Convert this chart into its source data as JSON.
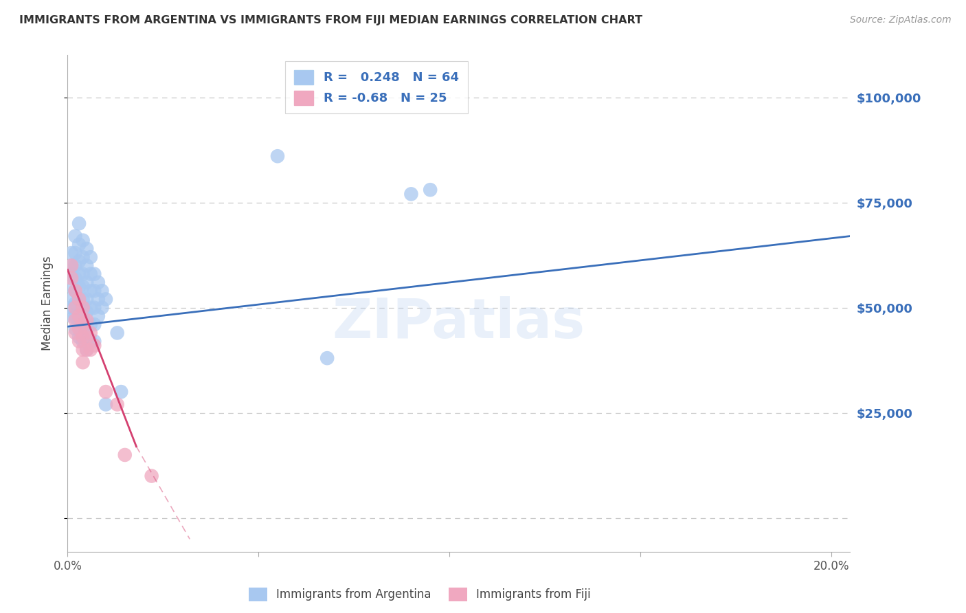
{
  "title": "IMMIGRANTS FROM ARGENTINA VS IMMIGRANTS FROM FIJI MEDIAN EARNINGS CORRELATION CHART",
  "source": "Source: ZipAtlas.com",
  "ylabel_label": "Median Earnings",
  "xlim": [
    0.0,
    0.205
  ],
  "ylim": [
    -8000,
    110000
  ],
  "argentina_R": 0.248,
  "argentina_N": 64,
  "fiji_R": -0.68,
  "fiji_N": 25,
  "argentina_color": "#a8c8f0",
  "fiji_color": "#f0a8c0",
  "argentina_line_color": "#3a6fba",
  "fiji_line_color": "#d44070",
  "watermark": "ZIPatlas",
  "background_color": "#ffffff",
  "grid_color": "#c8c8c8",
  "tick_label_color": "#3a6fba",
  "title_color": "#333333",
  "source_color": "#999999",
  "argentina_points": [
    [
      0.001,
      63000
    ],
    [
      0.001,
      60000
    ],
    [
      0.001,
      58000
    ],
    [
      0.001,
      55000
    ],
    [
      0.001,
      52000
    ],
    [
      0.001,
      50000
    ],
    [
      0.001,
      48000
    ],
    [
      0.002,
      67000
    ],
    [
      0.002,
      63000
    ],
    [
      0.002,
      60000
    ],
    [
      0.002,
      57000
    ],
    [
      0.002,
      54000
    ],
    [
      0.002,
      51000
    ],
    [
      0.002,
      48000
    ],
    [
      0.002,
      45000
    ],
    [
      0.003,
      70000
    ],
    [
      0.003,
      65000
    ],
    [
      0.003,
      61000
    ],
    [
      0.003,
      58000
    ],
    [
      0.003,
      55000
    ],
    [
      0.003,
      52000
    ],
    [
      0.003,
      49000
    ],
    [
      0.003,
      46000
    ],
    [
      0.003,
      43000
    ],
    [
      0.004,
      66000
    ],
    [
      0.004,
      62000
    ],
    [
      0.004,
      58000
    ],
    [
      0.004,
      55000
    ],
    [
      0.004,
      52000
    ],
    [
      0.004,
      48000
    ],
    [
      0.004,
      45000
    ],
    [
      0.004,
      42000
    ],
    [
      0.005,
      64000
    ],
    [
      0.005,
      60000
    ],
    [
      0.005,
      56000
    ],
    [
      0.005,
      52000
    ],
    [
      0.005,
      49000
    ],
    [
      0.005,
      46000
    ],
    [
      0.005,
      43000
    ],
    [
      0.005,
      40000
    ],
    [
      0.006,
      62000
    ],
    [
      0.006,
      58000
    ],
    [
      0.006,
      54000
    ],
    [
      0.006,
      50000
    ],
    [
      0.006,
      46000
    ],
    [
      0.006,
      42000
    ],
    [
      0.007,
      58000
    ],
    [
      0.007,
      54000
    ],
    [
      0.007,
      50000
    ],
    [
      0.007,
      46000
    ],
    [
      0.007,
      42000
    ],
    [
      0.008,
      56000
    ],
    [
      0.008,
      52000
    ],
    [
      0.008,
      48000
    ],
    [
      0.009,
      54000
    ],
    [
      0.009,
      50000
    ],
    [
      0.01,
      52000
    ],
    [
      0.01,
      27000
    ],
    [
      0.013,
      44000
    ],
    [
      0.014,
      30000
    ],
    [
      0.055,
      86000
    ],
    [
      0.068,
      38000
    ],
    [
      0.09,
      77000
    ],
    [
      0.095,
      78000
    ]
  ],
  "fiji_points": [
    [
      0.001,
      60000
    ],
    [
      0.001,
      57000
    ],
    [
      0.002,
      54000
    ],
    [
      0.002,
      50000
    ],
    [
      0.002,
      47000
    ],
    [
      0.002,
      44000
    ],
    [
      0.003,
      52000
    ],
    [
      0.003,
      48000
    ],
    [
      0.003,
      45000
    ],
    [
      0.003,
      42000
    ],
    [
      0.004,
      50000
    ],
    [
      0.004,
      46000
    ],
    [
      0.004,
      43000
    ],
    [
      0.004,
      40000
    ],
    [
      0.004,
      37000
    ],
    [
      0.005,
      47000
    ],
    [
      0.005,
      43000
    ],
    [
      0.005,
      40000
    ],
    [
      0.006,
      44000
    ],
    [
      0.006,
      40000
    ],
    [
      0.007,
      41000
    ],
    [
      0.01,
      30000
    ],
    [
      0.013,
      27000
    ],
    [
      0.015,
      15000
    ],
    [
      0.022,
      10000
    ]
  ],
  "argentina_line": {
    "x0": 0.0,
    "y0": 45500,
    "x1": 0.205,
    "y1": 67000
  },
  "fiji_line_solid": {
    "x0": 0.0,
    "y0": 59000,
    "x1": 0.018,
    "y1": 17000
  },
  "fiji_line_dash": {
    "x0": 0.018,
    "y0": 17000,
    "x1": 0.032,
    "y1": -5000
  },
  "ytick_vals": [
    0,
    25000,
    50000,
    75000,
    100000
  ],
  "ytick_labels": [
    "",
    "$25,000",
    "$50,000",
    "$75,000",
    "$100,000"
  ],
  "xtick_vals": [
    0.0,
    0.05,
    0.1,
    0.15,
    0.2
  ],
  "xtick_labels": [
    "0.0%",
    "",
    "",
    "",
    "20.0%"
  ]
}
